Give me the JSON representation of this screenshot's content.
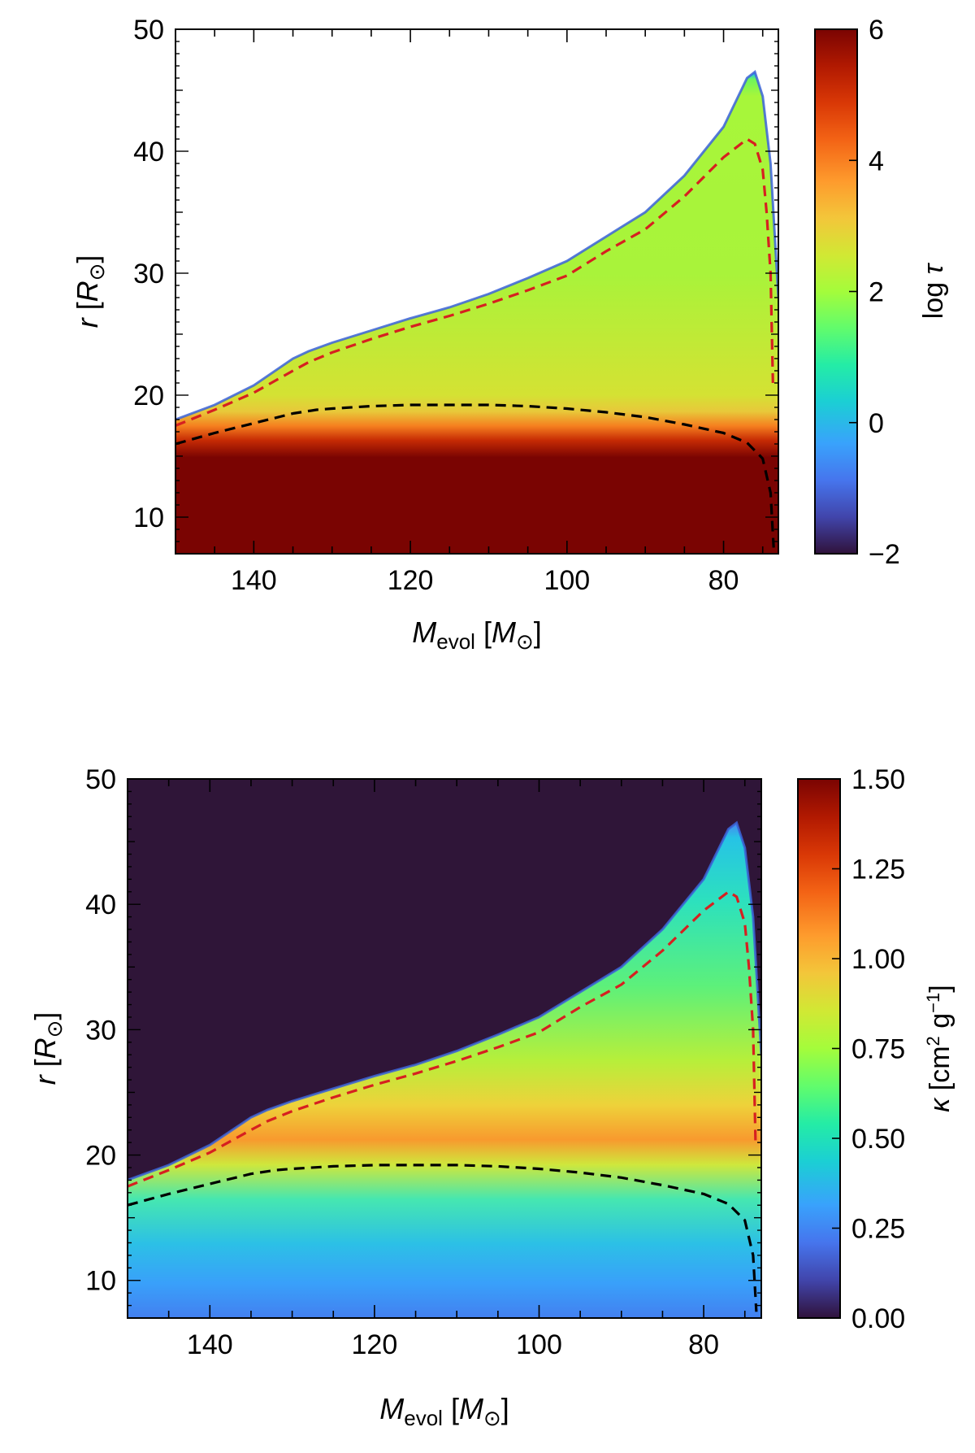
{
  "chart_data": [
    {
      "type": "heatmap",
      "panel": "top",
      "xlabel": "M_evol [M_⊙]",
      "ylabel": "r [R_⊙]",
      "colorbar_label": "log τ",
      "xlim": [
        150,
        73
      ],
      "ylim": [
        7,
        50
      ],
      "x_inverted": true,
      "xticks": [
        140,
        120,
        100,
        80
      ],
      "yticks": [
        10,
        20,
        30,
        40,
        50
      ],
      "colorbar": {
        "min": -2,
        "max": 6,
        "ticks": [
          "6",
          "4",
          "2",
          "0",
          "−2"
        ],
        "colormap": "turbo"
      },
      "background": "#ffffff",
      "surface_radius": {
        "x": [
          150,
          145,
          140,
          135,
          133,
          130,
          125,
          120,
          115,
          110,
          105,
          100,
          95,
          90,
          85,
          80,
          77,
          76,
          75,
          74,
          73
        ],
        "y": [
          18.0,
          19.2,
          20.8,
          23.0,
          23.6,
          24.3,
          25.3,
          26.3,
          27.2,
          28.3,
          29.6,
          31.0,
          33.0,
          35.0,
          38.0,
          42.0,
          46.0,
          46.5,
          44.5,
          39.0,
          28.0
        ]
      },
      "contours": [
        {
          "color": "#d62020",
          "style": "dashed",
          "x": [
            150,
            145,
            140,
            135,
            133,
            130,
            125,
            120,
            115,
            110,
            105,
            100,
            95,
            90,
            85,
            80,
            77,
            76,
            75,
            74.5,
            74,
            73.7
          ],
          "y": [
            17.5,
            18.8,
            20.2,
            22.0,
            22.7,
            23.5,
            24.6,
            25.6,
            26.5,
            27.5,
            28.6,
            29.8,
            31.8,
            33.6,
            36.3,
            39.5,
            41.0,
            40.6,
            38.5,
            35.0,
            30.0,
            21.0
          ]
        },
        {
          "color": "#000000",
          "style": "dashed",
          "x": [
            150,
            145,
            140,
            135,
            132,
            130,
            125,
            120,
            115,
            110,
            105,
            100,
            95,
            90,
            85,
            80,
            77,
            75,
            74,
            73.6
          ],
          "y": [
            16.0,
            16.9,
            17.7,
            18.5,
            18.8,
            18.9,
            19.1,
            19.2,
            19.2,
            19.2,
            19.1,
            18.9,
            18.6,
            18.2,
            17.6,
            16.9,
            16.1,
            14.8,
            12.0,
            7.5
          ]
        }
      ]
    },
    {
      "type": "heatmap",
      "panel": "bottom",
      "xlabel": "M_evol [M_⊙]",
      "ylabel": "r [R_⊙]",
      "colorbar_label": "κ [cm² g⁻¹]",
      "xlim": [
        150,
        73
      ],
      "ylim": [
        7,
        50
      ],
      "x_inverted": true,
      "xticks": [
        140,
        120,
        100,
        80
      ],
      "yticks": [
        10,
        20,
        30,
        40,
        50
      ],
      "colorbar": {
        "min": 0.0,
        "max": 1.5,
        "ticks": [
          "1.50",
          "1.25",
          "1.00",
          "0.75",
          "0.50",
          "0.25",
          "0.00"
        ],
        "colormap": "turbo"
      },
      "background": "#2f1538",
      "surface_radius": {
        "x": [
          150,
          145,
          140,
          135,
          133,
          130,
          125,
          120,
          115,
          110,
          105,
          100,
          95,
          90,
          85,
          80,
          77,
          76,
          75,
          74,
          73
        ],
        "y": [
          18.0,
          19.2,
          20.8,
          23.0,
          23.6,
          24.3,
          25.3,
          26.3,
          27.2,
          28.3,
          29.6,
          31.0,
          33.0,
          35.0,
          38.0,
          42.0,
          46.0,
          46.5,
          44.5,
          39.0,
          28.0
        ]
      },
      "contours": [
        {
          "color": "#d62020",
          "style": "dashed",
          "x": [
            150,
            145,
            140,
            135,
            133,
            130,
            125,
            120,
            115,
            110,
            105,
            100,
            95,
            90,
            85,
            80,
            77,
            76,
            75,
            74.5,
            74,
            73.7
          ],
          "y": [
            17.5,
            18.8,
            20.2,
            22.0,
            22.7,
            23.5,
            24.6,
            25.6,
            26.5,
            27.5,
            28.6,
            29.8,
            31.8,
            33.6,
            36.3,
            39.5,
            41.0,
            40.6,
            38.5,
            35.0,
            30.0,
            21.0
          ]
        },
        {
          "color": "#000000",
          "style": "dashed",
          "x": [
            150,
            145,
            140,
            135,
            132,
            130,
            125,
            120,
            115,
            110,
            105,
            100,
            95,
            90,
            85,
            80,
            77,
            75,
            74,
            73.6
          ],
          "y": [
            16.0,
            16.9,
            17.7,
            18.5,
            18.8,
            18.9,
            19.1,
            19.2,
            19.2,
            19.2,
            19.1,
            18.9,
            18.6,
            18.2,
            17.6,
            16.9,
            16.1,
            14.8,
            12.0,
            7.5
          ]
        }
      ]
    }
  ]
}
